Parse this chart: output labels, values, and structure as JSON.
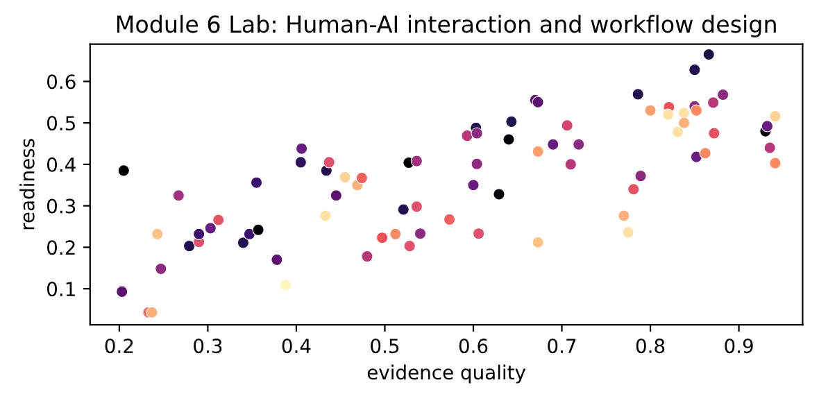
{
  "chart_data": {
    "type": "scatter",
    "title": "Module 6 Lab: Human-AI interaction and workflow design",
    "xlabel": "evidence quality",
    "ylabel": "readiness",
    "xlim": [
      0.167,
      0.972
    ],
    "ylim": [
      0.013,
      0.69
    ],
    "xticks": [
      0.2,
      0.3,
      0.4,
      0.5,
      0.6,
      0.7,
      0.8,
      0.9
    ],
    "yticks": [
      0.1,
      0.2,
      0.3,
      0.4,
      0.5,
      0.6
    ],
    "grid": false,
    "marker": "circle",
    "x": [
      0.205,
      0.203,
      0.233,
      0.237,
      0.243,
      0.247,
      0.267,
      0.279,
      0.29,
      0.29,
      0.303,
      0.312,
      0.34,
      0.347,
      0.357,
      0.355,
      0.378,
      0.388,
      0.405,
      0.406,
      0.434,
      0.437,
      0.433,
      0.445,
      0.455,
      0.469,
      0.474,
      0.48,
      0.497,
      0.512,
      0.521,
      0.527,
      0.528,
      0.536,
      0.536,
      0.54,
      0.573,
      0.593,
      0.6,
      0.603,
      0.604,
      0.604,
      0.606,
      0.629,
      0.64,
      0.643,
      0.67,
      0.673,
      0.673,
      0.673,
      0.69,
      0.706,
      0.71,
      0.719,
      0.77,
      0.775,
      0.781,
      0.786,
      0.789,
      0.8,
      0.821,
      0.82,
      0.831,
      0.838,
      0.838,
      0.85,
      0.85,
      0.852,
      0.852,
      0.862,
      0.866,
      0.871,
      0.872,
      0.882,
      0.93,
      0.932,
      0.935,
      0.941,
      0.941
    ],
    "values": [
      0.385,
      0.093,
      0.043,
      0.043,
      0.232,
      0.148,
      0.325,
      0.203,
      0.213,
      0.232,
      0.246,
      0.266,
      0.211,
      0.232,
      0.242,
      0.356,
      0.17,
      0.109,
      0.405,
      0.438,
      0.385,
      0.405,
      0.276,
      0.325,
      0.369,
      0.35,
      0.367,
      0.178,
      0.223,
      0.232,
      0.291,
      0.404,
      0.203,
      0.408,
      0.298,
      0.233,
      0.267,
      0.469,
      0.35,
      0.488,
      0.475,
      0.401,
      0.233,
      0.328,
      0.46,
      0.503,
      0.555,
      0.55,
      0.431,
      0.212,
      0.448,
      0.494,
      0.4,
      0.448,
      0.276,
      0.236,
      0.34,
      0.569,
      0.372,
      0.53,
      0.538,
      0.52,
      0.478,
      0.524,
      0.5,
      0.628,
      0.54,
      0.53,
      0.418,
      0.427,
      0.665,
      0.549,
      0.475,
      0.568,
      0.48,
      0.492,
      0.44,
      0.516,
      0.403
    ],
    "colors": [
      "#000004",
      "#5c126e",
      "#f4695c",
      "#feb078",
      "#fec287",
      "#8c2981",
      "#a3307e",
      "#221150",
      "#e3506d",
      "#3b0f70",
      "#6a1c81",
      "#e75263",
      "#221150",
      "#3b0f70",
      "#000004",
      "#3b0f70",
      "#5c126e",
      "#fcf7b9",
      "#2c115f",
      "#6a1c81",
      "#221150",
      "#e3506d",
      "#fde2a3",
      "#5c126e",
      "#fed395",
      "#feb078",
      "#f1605d",
      "#b73779",
      "#ed5059",
      "#fc8961",
      "#221150",
      "#000004",
      "#e3506d",
      "#a3307e",
      "#e3506d",
      "#8c2981",
      "#f1605d",
      "#b73779",
      "#6a1c81",
      "#221150",
      "#8c2981",
      "#8c2981",
      "#e3506d",
      "#000004",
      "#000004",
      "#221150",
      "#5c126e",
      "#5c126e",
      "#fe9f6d",
      "#fec287",
      "#6a1c81",
      "#d8456c",
      "#b73779",
      "#8c2981",
      "#feb078",
      "#fde2a3",
      "#e75263",
      "#221150",
      "#8c2981",
      "#fe9f6d",
      "#ed5059",
      "#fde2a3",
      "#fde2a3",
      "#fde2a3",
      "#feb078",
      "#221150",
      "#8c2981",
      "#fc8961",
      "#6a1c81",
      "#fc8961",
      "#1a1042",
      "#b73779",
      "#e75263",
      "#8c2981",
      "#000004",
      "#6a1c81",
      "#b73779",
      "#fed395",
      "#fc8961"
    ]
  }
}
